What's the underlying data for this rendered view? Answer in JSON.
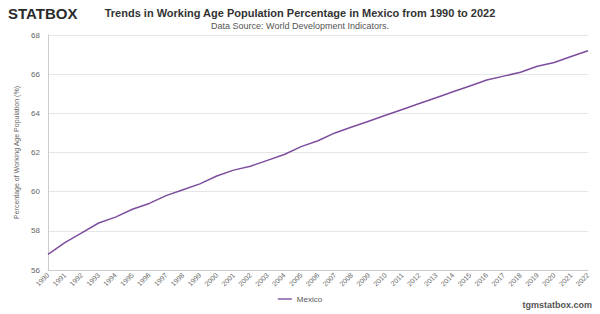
{
  "chart_data": {
    "type": "line",
    "title": "Trends in Working Age Population Percentage in Mexico from 1990 to 2022",
    "subtitle": "Data Source: World Development Indicators.",
    "y_label": "Percentage of Working Age Population (%)",
    "annotations": [
      "STATBOX",
      "tgmstatbox.com"
    ],
    "categories": [
      "1990",
      "1991",
      "1992",
      "1993",
      "1994",
      "1995",
      "1996",
      "1997",
      "1998",
      "1999",
      "2000",
      "2001",
      "2002",
      "2003",
      "2004",
      "2005",
      "2006",
      "2007",
      "2008",
      "2009",
      "2010",
      "2011",
      "2012",
      "2013",
      "2014",
      "2015",
      "2016",
      "2017",
      "2018",
      "2019",
      "2020",
      "2021",
      "2022"
    ],
    "series": [
      {
        "name": "Mexico",
        "color": "#7d4e9e",
        "values": [
          56.8,
          57.4,
          57.9,
          58.4,
          58.7,
          59.1,
          59.4,
          59.8,
          60.1,
          60.4,
          60.8,
          61.1,
          61.3,
          61.6,
          61.9,
          62.3,
          62.6,
          63.0,
          63.3,
          63.6,
          63.9,
          64.2,
          64.5,
          64.8,
          65.1,
          65.4,
          65.7,
          65.9,
          66.1,
          66.4,
          66.6,
          66.9,
          67.2
        ]
      }
    ],
    "ylim": [
      56,
      68
    ],
    "yticks": [
      56,
      58,
      60,
      62,
      64,
      66,
      68
    ],
    "grid": true,
    "legend": "bottom"
  }
}
